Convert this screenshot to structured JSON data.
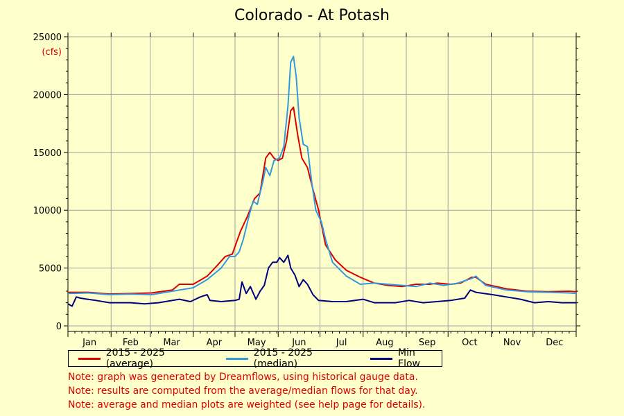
{
  "chart_data": {
    "type": "line",
    "title": "Colorado - At Potash",
    "ylabel": "(cfs)",
    "ylim": [
      0,
      25000
    ],
    "yticks": [
      0,
      5000,
      10000,
      15000,
      20000,
      25000
    ],
    "xlim": [
      0,
      365
    ],
    "months": [
      "Jan",
      "Feb",
      "Mar",
      "Apr",
      "May",
      "Jun",
      "Jul",
      "Aug",
      "Sep",
      "Oct",
      "Nov",
      "Dec"
    ],
    "grid": true,
    "legend_position": "bottom-left",
    "series": [
      {
        "name": "2015 - 2025 (average)",
        "color": "#dd0000",
        "points": [
          [
            0,
            2900
          ],
          [
            15,
            2900
          ],
          [
            30,
            2750
          ],
          [
            45,
            2800
          ],
          [
            60,
            2850
          ],
          [
            75,
            3100
          ],
          [
            80,
            3600
          ],
          [
            90,
            3600
          ],
          [
            100,
            4300
          ],
          [
            107,
            5200
          ],
          [
            113,
            6000
          ],
          [
            118,
            6200
          ],
          [
            124,
            8200
          ],
          [
            129,
            9500
          ],
          [
            134,
            11000
          ],
          [
            138,
            11500
          ],
          [
            142,
            14500
          ],
          [
            145,
            15000
          ],
          [
            148,
            14500
          ],
          [
            151,
            14300
          ],
          [
            154,
            14500
          ],
          [
            157,
            16000
          ],
          [
            160,
            18600
          ],
          [
            162,
            18900
          ],
          [
            165,
            16500
          ],
          [
            168,
            14500
          ],
          [
            172,
            13700
          ],
          [
            176,
            11800
          ],
          [
            180,
            10000
          ],
          [
            185,
            7000
          ],
          [
            192,
            5700
          ],
          [
            200,
            4800
          ],
          [
            210,
            4200
          ],
          [
            220,
            3700
          ],
          [
            230,
            3500
          ],
          [
            240,
            3400
          ],
          [
            250,
            3600
          ],
          [
            260,
            3600
          ],
          [
            265,
            3700
          ],
          [
            275,
            3600
          ],
          [
            282,
            3700
          ],
          [
            290,
            4200
          ],
          [
            293,
            4200
          ],
          [
            300,
            3600
          ],
          [
            315,
            3200
          ],
          [
            330,
            3000
          ],
          [
            345,
            2950
          ],
          [
            360,
            3000
          ],
          [
            365,
            2950
          ]
        ]
      },
      {
        "name": "2015 - 2025 (median)",
        "color": "#3399dd",
        "points": [
          [
            0,
            2800
          ],
          [
            15,
            2850
          ],
          [
            30,
            2700
          ],
          [
            45,
            2750
          ],
          [
            60,
            2700
          ],
          [
            75,
            3000
          ],
          [
            90,
            3300
          ],
          [
            100,
            4000
          ],
          [
            110,
            5000
          ],
          [
            116,
            6000
          ],
          [
            120,
            6000
          ],
          [
            123,
            6400
          ],
          [
            126,
            7500
          ],
          [
            130,
            9500
          ],
          [
            133,
            10800
          ],
          [
            136,
            10500
          ],
          [
            140,
            12500
          ],
          [
            142,
            13700
          ],
          [
            145,
            13000
          ],
          [
            148,
            14300
          ],
          [
            152,
            14500
          ],
          [
            155,
            15500
          ],
          [
            158,
            19000
          ],
          [
            160,
            22800
          ],
          [
            162,
            23300
          ],
          [
            164,
            21500
          ],
          [
            166,
            18000
          ],
          [
            169,
            15700
          ],
          [
            172,
            15500
          ],
          [
            175,
            12500
          ],
          [
            178,
            10000
          ],
          [
            182,
            9000
          ],
          [
            185,
            7500
          ],
          [
            190,
            5500
          ],
          [
            200,
            4300
          ],
          [
            210,
            3600
          ],
          [
            220,
            3700
          ],
          [
            230,
            3600
          ],
          [
            240,
            3500
          ],
          [
            250,
            3400
          ],
          [
            260,
            3700
          ],
          [
            270,
            3500
          ],
          [
            280,
            3700
          ],
          [
            290,
            4100
          ],
          [
            293,
            4300
          ],
          [
            300,
            3500
          ],
          [
            315,
            3100
          ],
          [
            330,
            2950
          ],
          [
            345,
            2900
          ],
          [
            360,
            2850
          ],
          [
            365,
            2800
          ]
        ]
      },
      {
        "name": "Min Flow",
        "color": "#000080",
        "points": [
          [
            0,
            1900
          ],
          [
            3,
            1700
          ],
          [
            6,
            2500
          ],
          [
            9,
            2400
          ],
          [
            14,
            2300
          ],
          [
            20,
            2200
          ],
          [
            30,
            2000
          ],
          [
            45,
            2000
          ],
          [
            55,
            1900
          ],
          [
            65,
            2000
          ],
          [
            80,
            2300
          ],
          [
            88,
            2100
          ],
          [
            95,
            2500
          ],
          [
            100,
            2700
          ],
          [
            102,
            2200
          ],
          [
            110,
            2100
          ],
          [
            120,
            2200
          ],
          [
            123,
            2300
          ],
          [
            125,
            3800
          ],
          [
            128,
            2800
          ],
          [
            131,
            3400
          ],
          [
            135,
            2300
          ],
          [
            138,
            3000
          ],
          [
            141,
            3500
          ],
          [
            144,
            5000
          ],
          [
            147,
            5500
          ],
          [
            150,
            5500
          ],
          [
            152,
            5900
          ],
          [
            155,
            5500
          ],
          [
            158,
            6100
          ],
          [
            160,
            5000
          ],
          [
            163,
            4400
          ],
          [
            166,
            3400
          ],
          [
            169,
            4000
          ],
          [
            172,
            3600
          ],
          [
            176,
            2700
          ],
          [
            180,
            2200
          ],
          [
            190,
            2100
          ],
          [
            200,
            2100
          ],
          [
            212,
            2300
          ],
          [
            220,
            2000
          ],
          [
            235,
            2000
          ],
          [
            245,
            2200
          ],
          [
            255,
            2000
          ],
          [
            265,
            2100
          ],
          [
            275,
            2200
          ],
          [
            285,
            2400
          ],
          [
            289,
            3100
          ],
          [
            293,
            2900
          ],
          [
            305,
            2700
          ],
          [
            315,
            2500
          ],
          [
            325,
            2300
          ],
          [
            335,
            2000
          ],
          [
            345,
            2100
          ],
          [
            355,
            2000
          ],
          [
            365,
            2000
          ]
        ]
      }
    ]
  },
  "notes": [
    "Note: graph was generated by Dreamflows, using historical gauge data.",
    "Note: results are computed from the average/median flows for that day.",
    "Note: average and median plots are weighted (see help page for details)."
  ],
  "colors": {
    "background": "#ffffcc",
    "grid": "#a0a0a0",
    "notes": "#dd0000",
    "ylabel": "#dd0000"
  }
}
